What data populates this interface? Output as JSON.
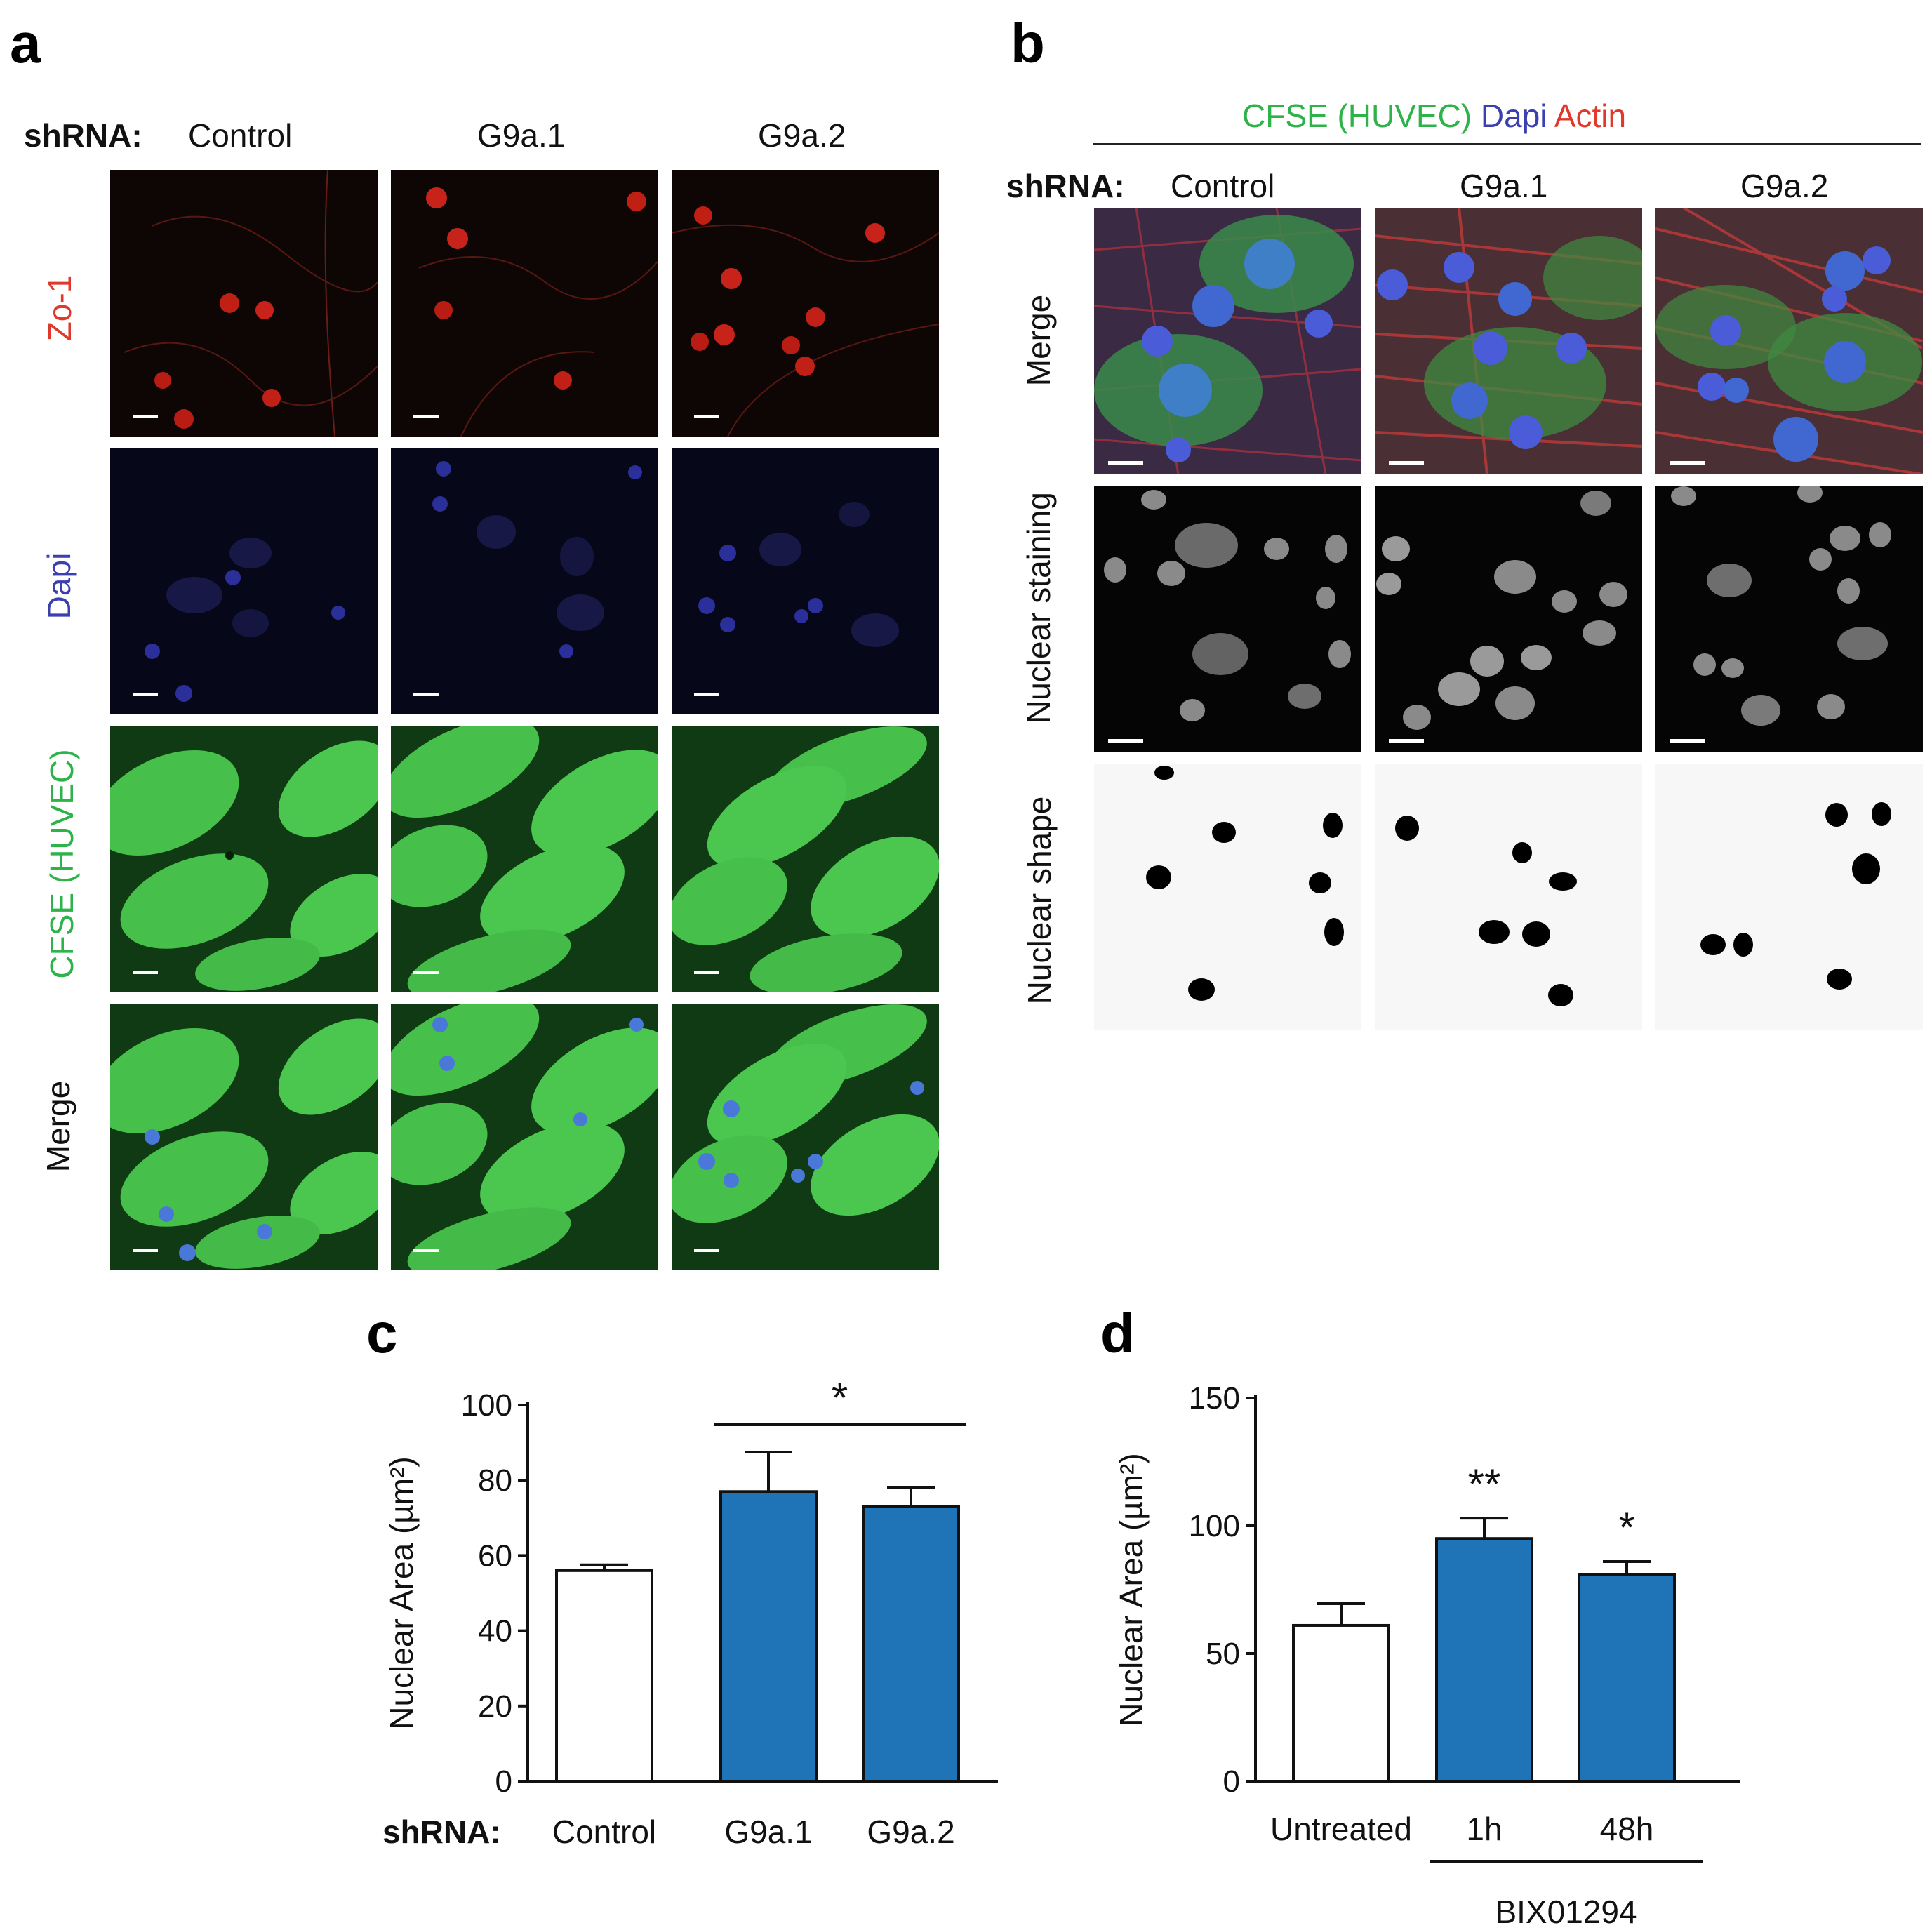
{
  "panel_a": {
    "letter": "a",
    "shrna_label": "shRNA:",
    "columns": [
      "Control",
      "G9a.1",
      "G9a.2"
    ],
    "rows": [
      {
        "label": "Zo-1",
        "color": "#e0392b"
      },
      {
        "label": "Dapi",
        "color": "#3b3fb0"
      },
      {
        "label": "CFSE (HUVEC)",
        "color": "#2db34a"
      },
      {
        "label": "Merge",
        "color": "#111111"
      }
    ]
  },
  "panel_b": {
    "letter": "b",
    "stain_header": [
      {
        "text": "CFSE (HUVEC)",
        "color": "#2db34a"
      },
      {
        "text": "Dapi",
        "color": "#3b3fb0"
      },
      {
        "text": "Actin",
        "color": "#e0392b"
      }
    ],
    "shrna_label": "shRNA:",
    "columns": [
      "Control",
      "G9a.1",
      "G9a.2"
    ],
    "rows": [
      {
        "label": "Merge"
      },
      {
        "label": "Nuclear staining"
      },
      {
        "label": "Nuclear shape"
      }
    ]
  },
  "chart_data": [
    {
      "panel": "c",
      "type": "bar",
      "categories": [
        "Control",
        "G9a.1",
        "G9a.2"
      ],
      "category_prefix": "shRNA:",
      "values": [
        56,
        77,
        73
      ],
      "errors": [
        1.5,
        10.5,
        5
      ],
      "colors": [
        "#ffffff",
        "#1f73b7",
        "#1f73b7"
      ],
      "ylabel": "Nuclear Area (µm²)",
      "ylim": [
        0,
        100
      ],
      "yticks": [
        0,
        20,
        40,
        60,
        80,
        100
      ],
      "significance": [
        {
          "from": 1,
          "to": 2,
          "label": "*"
        }
      ]
    },
    {
      "panel": "d",
      "type": "bar",
      "categories": [
        "Untreated",
        "1h",
        "48h"
      ],
      "values": [
        61,
        95,
        81
      ],
      "errors": [
        8.5,
        8,
        5
      ],
      "colors": [
        "#ffffff",
        "#1f73b7",
        "#1f73b7"
      ],
      "ylabel": "Nuclear Area (µm²)",
      "ylim": [
        0,
        150
      ],
      "yticks": [
        0,
        50,
        100,
        150
      ],
      "bar_labels": [
        "",
        "**",
        "*"
      ],
      "group_label": "BIX01294"
    }
  ]
}
